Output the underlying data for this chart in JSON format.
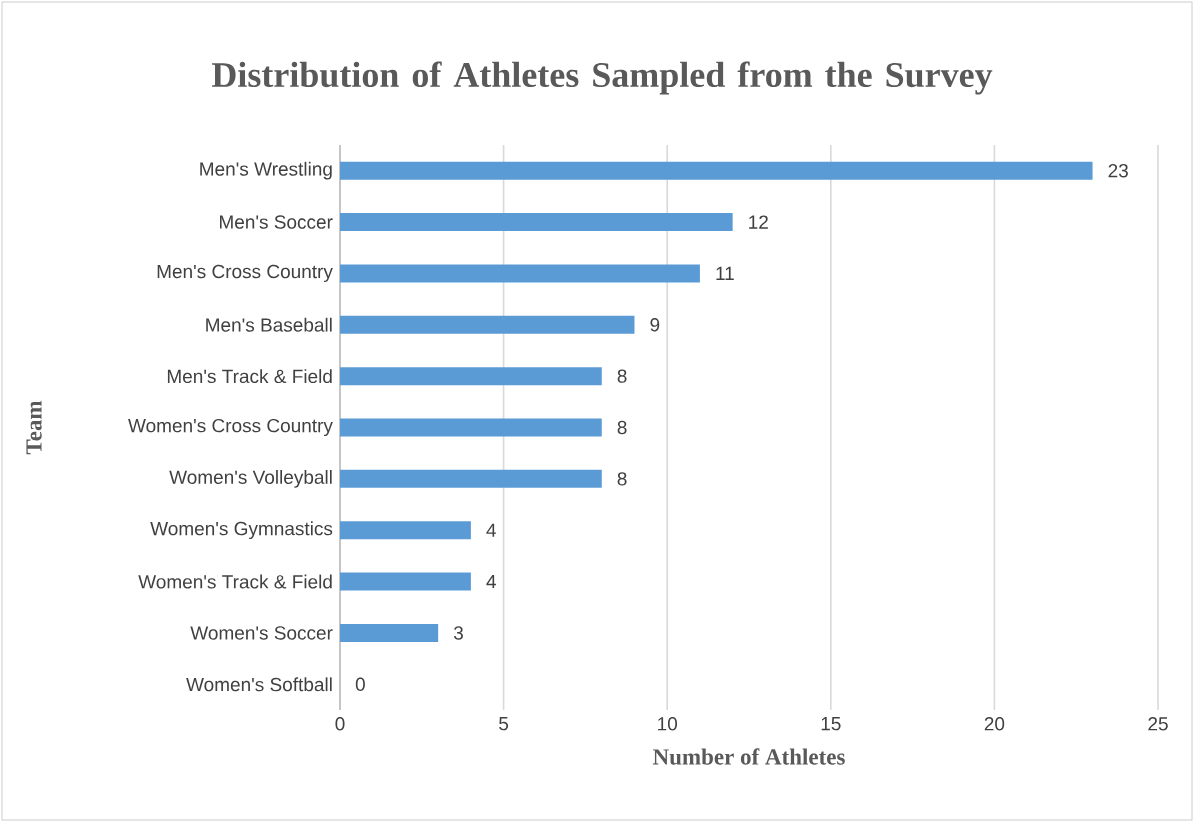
{
  "chart_data": {
    "type": "bar",
    "orientation": "horizontal",
    "title": "Distribution of Athletes Sampled from the Survey",
    "xlabel": "Number of Athletes",
    "ylabel": "Team",
    "categories": [
      "Men's Wrestling",
      "Men's Soccer",
      "Men's Cross Country",
      "Men's Baseball",
      "Men's Track & Field",
      "Women's Cross Country",
      "Women's Volleyball",
      "Women's Gymnastics",
      "Women's Track & Field",
      "Women's Soccer",
      "Women's Softball"
    ],
    "values": [
      23,
      12,
      11,
      9,
      8,
      8,
      8,
      4,
      4,
      3,
      0
    ],
    "color": "#5b9bd5",
    "xlim": [
      0,
      25
    ],
    "xticks": [
      0,
      5,
      10,
      15,
      20,
      25
    ],
    "grid": "x",
    "data_labels": true
  }
}
